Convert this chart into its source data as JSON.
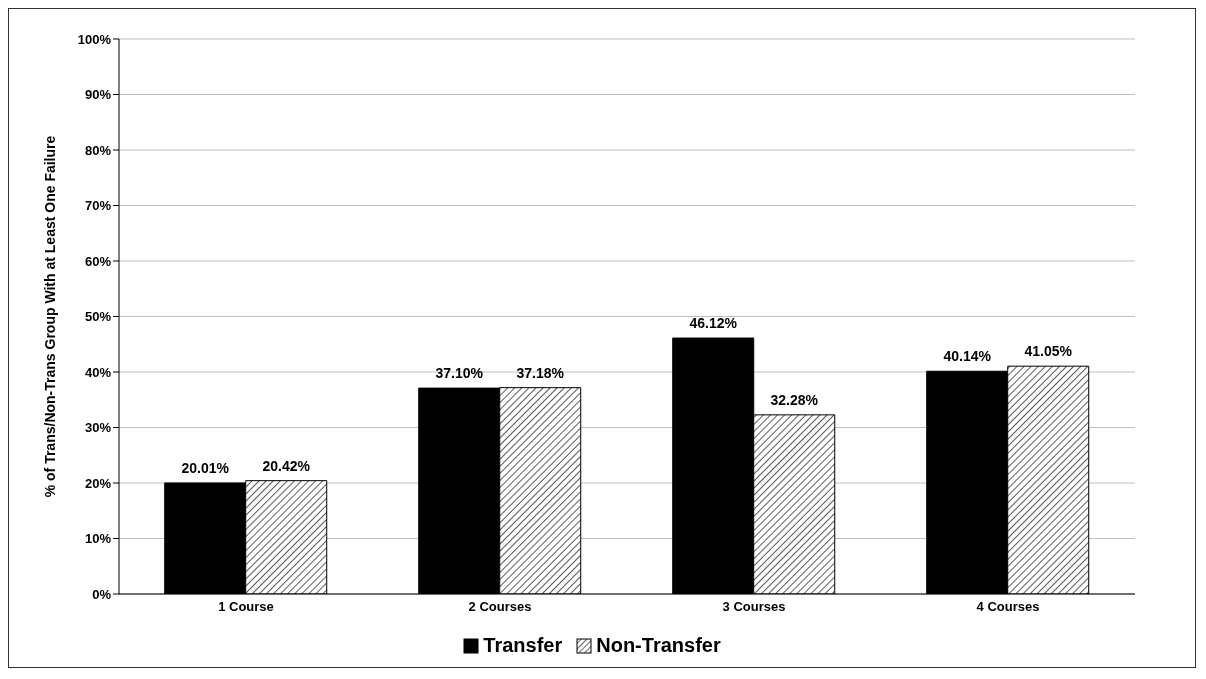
{
  "chart_data": {
    "type": "bar",
    "ylabel": "% of Trans/Non-Trans Group  With at Least One Failure",
    "categories": [
      "1 Course",
      "2 Courses",
      "3 Courses",
      "4 Courses"
    ],
    "series": [
      {
        "name": "Transfer",
        "color": "#000000",
        "values": [
          20.01,
          37.1,
          46.12,
          40.14
        ],
        "value_labels": [
          "20.01%",
          "37.10%",
          "46.12%",
          "40.14%"
        ]
      },
      {
        "name": "Non-Transfer",
        "color": "#000000",
        "values": [
          20.42,
          37.18,
          32.28,
          41.05
        ],
        "value_labels": [
          "20.42%",
          "37.18%",
          "32.28%",
          "41.05%"
        ]
      }
    ],
    "ylim": [
      0,
      100
    ],
    "yticks": [
      {
        "value": 0,
        "label": "0%"
      },
      {
        "value": 10,
        "label": "10%"
      },
      {
        "value": 20,
        "label": "20%"
      },
      {
        "value": 30,
        "label": "30%"
      },
      {
        "value": 40,
        "label": "40%"
      },
      {
        "value": 50,
        "label": "50%"
      },
      {
        "value": 60,
        "label": "60%"
      },
      {
        "value": 70,
        "label": "70%"
      },
      {
        "value": 80,
        "label": "80%"
      },
      {
        "value": 90,
        "label": "90%"
      },
      {
        "value": 100,
        "label": "100%"
      }
    ],
    "grid": "y",
    "legend": "bottom"
  }
}
